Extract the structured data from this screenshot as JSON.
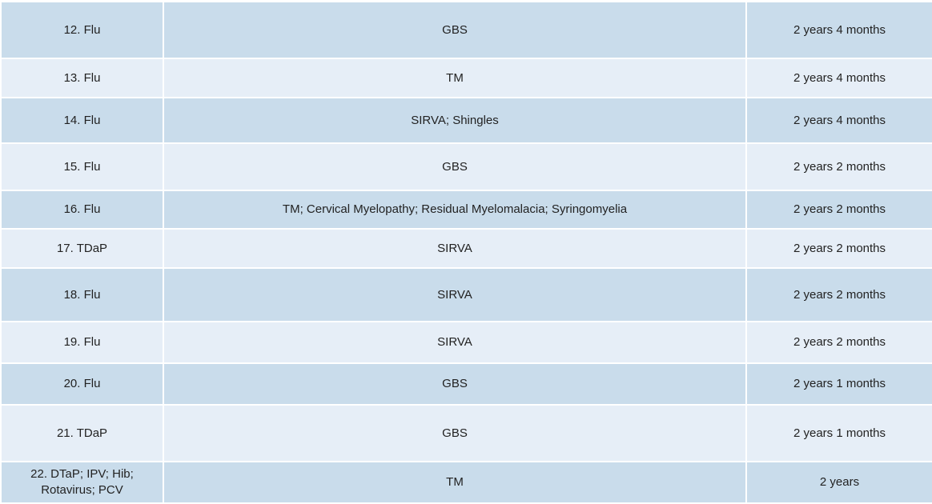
{
  "table": {
    "rows": [
      [
        "12. Flu",
        "GBS",
        "2 years 4 months"
      ],
      [
        "13. Flu",
        "TM",
        "2 years 4 months"
      ],
      [
        "14. Flu",
        "SIRVA; Shingles",
        "2 years 4 months"
      ],
      [
        "15. Flu",
        "GBS",
        "2 years 2 months"
      ],
      [
        "16. Flu",
        "TM; Cervical Myelopathy; Residual Myelomalacia; Syringomyelia",
        "2 years 2 months"
      ],
      [
        "17. TDaP",
        "SIRVA",
        "2 years 2 months"
      ],
      [
        "18. Flu",
        "SIRVA",
        "2 years 2 months"
      ],
      [
        "19. Flu",
        "SIRVA",
        "2 years 2 months"
      ],
      [
        "20. Flu",
        "GBS",
        "2 years 1 months"
      ],
      [
        "21. TDaP",
        "GBS",
        "2 years 1 months"
      ],
      [
        "22. DTaP; IPV; Hib; Rotavirus; PCV",
        "TM",
        "2 years"
      ]
    ]
  }
}
